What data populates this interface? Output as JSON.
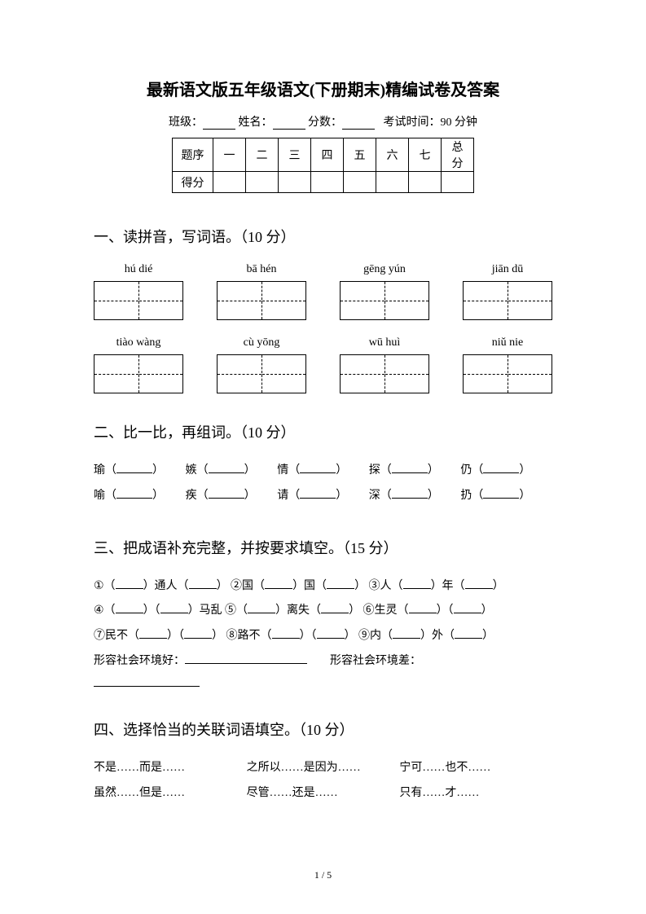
{
  "title": "最新语文版五年级语文(下册期末)精编试卷及答案",
  "info": {
    "class_label": "班级：",
    "name_label": "姓名：",
    "score_label": "分数：",
    "time_label": "考试时间：90 分钟"
  },
  "score_table": {
    "row1_label": "题序",
    "row2_label": "得分",
    "cols": [
      "一",
      "二",
      "三",
      "四",
      "五",
      "六",
      "七",
      "总分"
    ]
  },
  "section1": {
    "heading": "一、读拼音，写词语。（10 分）",
    "pinyin_row1": [
      "hú  dié",
      "bā hén",
      "gēng yún",
      "jiān dū"
    ],
    "pinyin_row2": [
      "tiào wàng",
      "cù yōng",
      "wū huì",
      "niǔ nie"
    ]
  },
  "section2": {
    "heading": "二、比一比，再组词。（10 分）",
    "row1": [
      "瑜",
      "嫉",
      "情",
      "探",
      "仍"
    ],
    "row2": [
      "喻",
      "疾",
      "请",
      "深",
      "扔"
    ]
  },
  "section3": {
    "heading": "三、把成语补充完整，并按要求填空。（15 分）",
    "line1_p1": "①（",
    "line1_p2": "）通人（",
    "line1_p3": "）  ②国（",
    "line1_p4": "）国（",
    "line1_p5": "）  ③人（",
    "line1_p6": "）年（",
    "line1_p7": "）",
    "line2_p1": "④（",
    "line2_p2": "）（",
    "line2_p3": "）马乱  ⑤（",
    "line2_p4": "）离失（",
    "line2_p5": "）  ⑥生灵（",
    "line2_p6": "）（",
    "line2_p7": "）",
    "line3_p1": "⑦民不（",
    "line3_p2": "）（",
    "line3_p3": "）   ⑧路不（",
    "line3_p4": "）（",
    "line3_p5": "）   ⑨内（",
    "line3_p6": "）外（",
    "line3_p7": "）",
    "desc1": "形容社会环境好：",
    "desc2": "形容社会环境差："
  },
  "section4": {
    "heading": "四、选择恰当的关联词语填空。（10 分）",
    "row1": [
      "不是……而是……",
      "之所以……是因为……",
      "宁可……也不……"
    ],
    "row2": [
      "虽然……但是……",
      "尽管……还是……",
      "只有……才……"
    ]
  },
  "footer": "1 / 5"
}
